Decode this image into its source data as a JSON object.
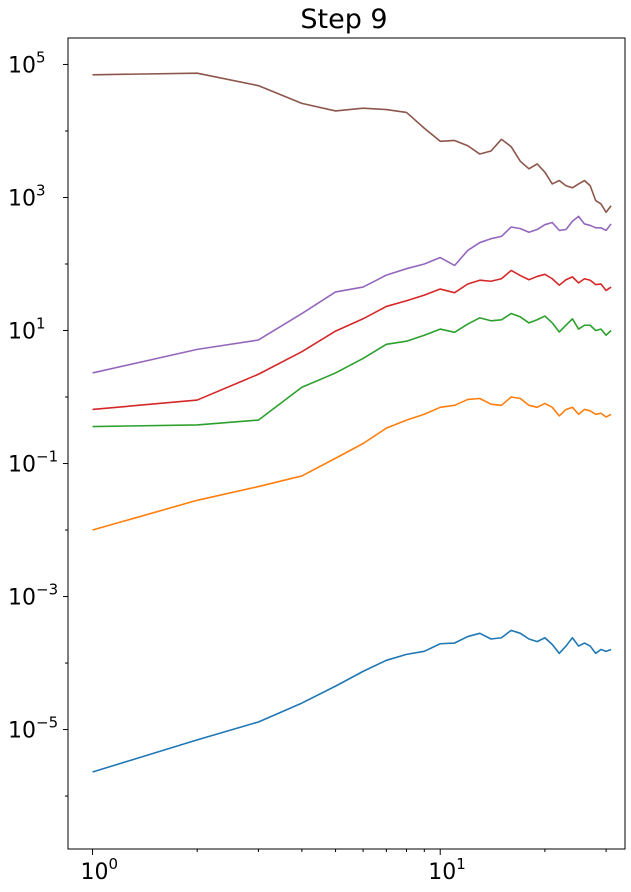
{
  "chart_data": {
    "type": "line",
    "title": "Step 9",
    "xlabel": "",
    "ylabel": "",
    "xscale": "log",
    "yscale": "log",
    "xlim": [
      0.85,
      34
    ],
    "ylim": [
      1.6e-07,
      250000.0
    ],
    "grid": false,
    "x_ticks": [
      {
        "value": 1,
        "base": "10",
        "exp": "0"
      },
      {
        "value": 10,
        "base": "10",
        "exp": "1"
      }
    ],
    "y_ticks": [
      {
        "value": 100000.0,
        "base": "10",
        "exp": "5"
      },
      {
        "value": 1000.0,
        "base": "10",
        "exp": "3"
      },
      {
        "value": 10,
        "base": "10",
        "exp": "1"
      },
      {
        "value": 0.1,
        "base": "10",
        "exp": "−1"
      },
      {
        "value": 0.001,
        "base": "10",
        "exp": "−3"
      },
      {
        "value": 1e-05,
        "base": "10",
        "exp": "−5"
      }
    ],
    "x": [
      1,
      2,
      3,
      4,
      5,
      6,
      7,
      8,
      9,
      10,
      11,
      12,
      13,
      14,
      15,
      16,
      17,
      18,
      19,
      20,
      21,
      22,
      23,
      24,
      25,
      26,
      27,
      28,
      29,
      30,
      31
    ],
    "series": [
      {
        "color": "#1f77b4",
        "values": [
          2.3e-06,
          7e-06,
          1.3e-05,
          2.5e-05,
          4.5e-05,
          7.5e-05,
          0.00011,
          0.000135,
          0.00015,
          0.000195,
          0.0002,
          0.00025,
          0.00028,
          0.00023,
          0.00024,
          0.00031,
          0.00028,
          0.00023,
          0.00021,
          0.00024,
          0.00019,
          0.00014,
          0.00018,
          0.00024,
          0.00018,
          0.0002,
          0.00018,
          0.00014,
          0.00016,
          0.00015,
          0.00016
        ]
      },
      {
        "color": "#ff7f0e",
        "values": [
          0.01,
          0.028,
          0.045,
          0.065,
          0.12,
          0.2,
          0.34,
          0.45,
          0.55,
          0.7,
          0.75,
          0.92,
          0.95,
          0.78,
          0.75,
          1.0,
          0.95,
          0.75,
          0.7,
          0.8,
          0.7,
          0.52,
          0.65,
          0.7,
          0.55,
          0.65,
          0.62,
          0.55,
          0.57,
          0.5,
          0.55
        ]
      },
      {
        "color": "#2ca02c",
        "values": [
          0.36,
          0.38,
          0.45,
          1.4,
          2.3,
          3.8,
          6.2,
          6.9,
          8.5,
          10.5,
          9.4,
          12.5,
          15.5,
          14,
          14.5,
          18,
          16,
          13,
          14.5,
          16.5,
          13,
          9.5,
          12,
          15,
          10.5,
          12,
          12,
          10,
          10.5,
          8.5,
          10
        ]
      },
      {
        "color": "#d62728",
        "values": [
          0.65,
          0.9,
          2.2,
          4.8,
          9.8,
          15,
          23,
          28,
          34,
          42,
          37,
          50,
          57,
          55,
          60,
          80,
          67,
          58,
          65,
          70,
          60,
          48,
          58,
          64,
          52,
          60,
          57,
          49,
          50,
          40,
          45
        ]
      },
      {
        "color": "#9467bd",
        "values": [
          2.3,
          5.2,
          7.2,
          18,
          38,
          45,
          68,
          85,
          100,
          125,
          95,
          160,
          210,
          240,
          260,
          360,
          340,
          300,
          330,
          390,
          420,
          320,
          330,
          440,
          520,
          400,
          380,
          350,
          350,
          320,
          400
        ]
      },
      {
        "color": "#8c564b",
        "values": [
          70000,
          74000,
          48000,
          26000,
          20000,
          22000,
          21000,
          19000,
          11000,
          7000,
          7200,
          6000,
          4500,
          5000,
          7500,
          5800,
          3500,
          2700,
          3200,
          2400,
          1600,
          1800,
          1500,
          1400,
          1600,
          1800,
          1500,
          900,
          800,
          600,
          750
        ]
      }
    ]
  }
}
